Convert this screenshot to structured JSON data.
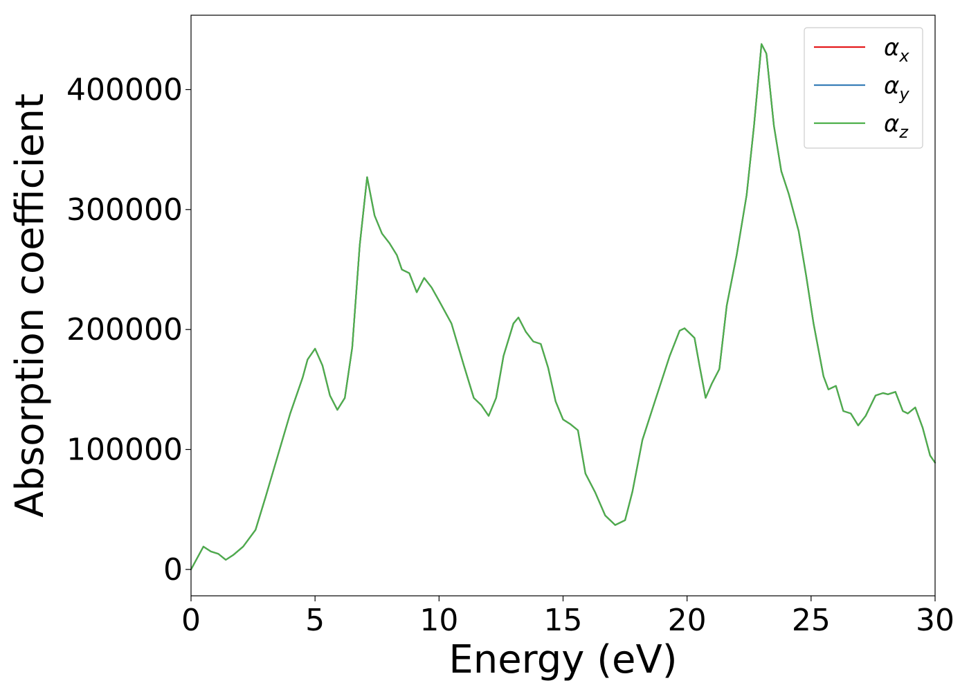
{
  "chart_data": {
    "type": "line",
    "xlabel": "Energy (eV)",
    "ylabel": "Absorption coefficient",
    "xlim": [
      0,
      30
    ],
    "ylim": [
      -22000,
      462000
    ],
    "x_ticks": [
      0,
      5,
      10,
      15,
      20,
      25,
      30
    ],
    "y_ticks": [
      0,
      100000,
      200000,
      300000,
      400000
    ],
    "grid": false,
    "legend_position": "top-right",
    "series": [
      {
        "name": "α",
        "subscript": "x",
        "color": "#e41a1c",
        "points": [
          [
            0,
            0
          ],
          [
            0.5,
            19000
          ],
          [
            0.8,
            15000
          ],
          [
            1.1,
            13000
          ],
          [
            1.4,
            8000
          ],
          [
            1.7,
            12000
          ],
          [
            2.1,
            19000
          ],
          [
            2.6,
            33000
          ],
          [
            3.0,
            60000
          ],
          [
            3.5,
            95000
          ],
          [
            4.0,
            130000
          ],
          [
            4.5,
            160000
          ],
          [
            4.7,
            175000
          ],
          [
            5.0,
            184000
          ],
          [
            5.3,
            170000
          ],
          [
            5.6,
            145000
          ],
          [
            5.9,
            133000
          ],
          [
            6.2,
            143000
          ],
          [
            6.5,
            185000
          ],
          [
            6.8,
            270000
          ],
          [
            7.1,
            327000
          ],
          [
            7.4,
            295000
          ],
          [
            7.7,
            280000
          ],
          [
            8.0,
            272000
          ],
          [
            8.3,
            262000
          ],
          [
            8.5,
            250000
          ],
          [
            8.8,
            247000
          ],
          [
            9.1,
            231000
          ],
          [
            9.4,
            243000
          ],
          [
            9.7,
            235000
          ],
          [
            10.0,
            224000
          ],
          [
            10.5,
            205000
          ],
          [
            11.0,
            170000
          ],
          [
            11.4,
            143000
          ],
          [
            11.7,
            137000
          ],
          [
            12.0,
            128000
          ],
          [
            12.3,
            143000
          ],
          [
            12.6,
            178000
          ],
          [
            13.0,
            205000
          ],
          [
            13.2,
            210000
          ],
          [
            13.5,
            198000
          ],
          [
            13.8,
            190000
          ],
          [
            14.1,
            188000
          ],
          [
            14.4,
            168000
          ],
          [
            14.7,
            140000
          ],
          [
            15.0,
            125000
          ],
          [
            15.3,
            121000
          ],
          [
            15.6,
            116000
          ],
          [
            15.9,
            80000
          ],
          [
            16.3,
            64000
          ],
          [
            16.7,
            45000
          ],
          [
            17.1,
            37000
          ],
          [
            17.5,
            41000
          ],
          [
            17.8,
            65000
          ],
          [
            18.2,
            108000
          ],
          [
            18.7,
            140000
          ],
          [
            19.3,
            178000
          ],
          [
            19.7,
            199000
          ],
          [
            19.9,
            201000
          ],
          [
            20.3,
            193000
          ],
          [
            20.5,
            170000
          ],
          [
            20.75,
            143000
          ],
          [
            21.0,
            155000
          ],
          [
            21.3,
            167000
          ],
          [
            21.6,
            220000
          ],
          [
            22.0,
            262000
          ],
          [
            22.4,
            312000
          ],
          [
            22.7,
            370000
          ],
          [
            23.0,
            438000
          ],
          [
            23.2,
            430000
          ],
          [
            23.5,
            370000
          ],
          [
            23.8,
            332000
          ],
          [
            24.1,
            313000
          ],
          [
            24.5,
            282000
          ],
          [
            24.8,
            245000
          ],
          [
            25.1,
            205000
          ],
          [
            25.5,
            161000
          ],
          [
            25.7,
            150000
          ],
          [
            26.0,
            153000
          ],
          [
            26.3,
            132000
          ],
          [
            26.6,
            130000
          ],
          [
            26.9,
            120000
          ],
          [
            27.2,
            128000
          ],
          [
            27.6,
            145000
          ],
          [
            27.9,
            147000
          ],
          [
            28.1,
            146000
          ],
          [
            28.4,
            148000
          ],
          [
            28.7,
            132000
          ],
          [
            28.9,
            130000
          ],
          [
            29.2,
            135000
          ],
          [
            29.5,
            118000
          ],
          [
            29.8,
            95000
          ],
          [
            30.0,
            89000
          ]
        ]
      },
      {
        "name": "α",
        "subscript": "y",
        "color": "#377eb8",
        "points": [
          [
            0,
            0
          ],
          [
            0.5,
            19000
          ],
          [
            0.8,
            15000
          ],
          [
            1.1,
            13000
          ],
          [
            1.4,
            8000
          ],
          [
            1.7,
            12000
          ],
          [
            2.1,
            19000
          ],
          [
            2.6,
            33000
          ],
          [
            3.0,
            60000
          ],
          [
            3.5,
            95000
          ],
          [
            4.0,
            130000
          ],
          [
            4.5,
            160000
          ],
          [
            4.7,
            175000
          ],
          [
            5.0,
            184000
          ],
          [
            5.3,
            170000
          ],
          [
            5.6,
            145000
          ],
          [
            5.9,
            133000
          ],
          [
            6.2,
            143000
          ],
          [
            6.5,
            185000
          ],
          [
            6.8,
            270000
          ],
          [
            7.1,
            327000
          ],
          [
            7.4,
            295000
          ],
          [
            7.7,
            280000
          ],
          [
            8.0,
            272000
          ],
          [
            8.3,
            262000
          ],
          [
            8.5,
            250000
          ],
          [
            8.8,
            247000
          ],
          [
            9.1,
            231000
          ],
          [
            9.4,
            243000
          ],
          [
            9.7,
            235000
          ],
          [
            10.0,
            224000
          ],
          [
            10.5,
            205000
          ],
          [
            11.0,
            170000
          ],
          [
            11.4,
            143000
          ],
          [
            11.7,
            137000
          ],
          [
            12.0,
            128000
          ],
          [
            12.3,
            143000
          ],
          [
            12.6,
            178000
          ],
          [
            13.0,
            205000
          ],
          [
            13.2,
            210000
          ],
          [
            13.5,
            198000
          ],
          [
            13.8,
            190000
          ],
          [
            14.1,
            188000
          ],
          [
            14.4,
            168000
          ],
          [
            14.7,
            140000
          ],
          [
            15.0,
            125000
          ],
          [
            15.3,
            121000
          ],
          [
            15.6,
            116000
          ],
          [
            15.9,
            80000
          ],
          [
            16.3,
            64000
          ],
          [
            16.7,
            45000
          ],
          [
            17.1,
            37000
          ],
          [
            17.5,
            41000
          ],
          [
            17.8,
            65000
          ],
          [
            18.2,
            108000
          ],
          [
            18.7,
            140000
          ],
          [
            19.3,
            178000
          ],
          [
            19.7,
            199000
          ],
          [
            19.9,
            201000
          ],
          [
            20.3,
            193000
          ],
          [
            20.5,
            170000
          ],
          [
            20.75,
            143000
          ],
          [
            21.0,
            155000
          ],
          [
            21.3,
            167000
          ],
          [
            21.6,
            220000
          ],
          [
            22.0,
            262000
          ],
          [
            22.4,
            312000
          ],
          [
            22.7,
            370000
          ],
          [
            23.0,
            438000
          ],
          [
            23.2,
            430000
          ],
          [
            23.5,
            370000
          ],
          [
            23.8,
            332000
          ],
          [
            24.1,
            313000
          ],
          [
            24.5,
            282000
          ],
          [
            24.8,
            245000
          ],
          [
            25.1,
            205000
          ],
          [
            25.5,
            161000
          ],
          [
            25.7,
            150000
          ],
          [
            26.0,
            153000
          ],
          [
            26.3,
            132000
          ],
          [
            26.6,
            130000
          ],
          [
            26.9,
            120000
          ],
          [
            27.2,
            128000
          ],
          [
            27.6,
            145000
          ],
          [
            27.9,
            147000
          ],
          [
            28.1,
            146000
          ],
          [
            28.4,
            148000
          ],
          [
            28.7,
            132000
          ],
          [
            28.9,
            130000
          ],
          [
            29.2,
            135000
          ],
          [
            29.5,
            118000
          ],
          [
            29.8,
            95000
          ],
          [
            30.0,
            89000
          ]
        ]
      },
      {
        "name": "α",
        "subscript": "z",
        "color": "#4daf4a",
        "points": [
          [
            0,
            0
          ],
          [
            0.5,
            19000
          ],
          [
            0.8,
            15000
          ],
          [
            1.1,
            13000
          ],
          [
            1.4,
            8000
          ],
          [
            1.7,
            12000
          ],
          [
            2.1,
            19000
          ],
          [
            2.6,
            33000
          ],
          [
            3.0,
            60000
          ],
          [
            3.5,
            95000
          ],
          [
            4.0,
            130000
          ],
          [
            4.5,
            160000
          ],
          [
            4.7,
            175000
          ],
          [
            5.0,
            184000
          ],
          [
            5.3,
            170000
          ],
          [
            5.6,
            145000
          ],
          [
            5.9,
            133000
          ],
          [
            6.2,
            143000
          ],
          [
            6.5,
            185000
          ],
          [
            6.8,
            270000
          ],
          [
            7.1,
            327000
          ],
          [
            7.4,
            295000
          ],
          [
            7.7,
            280000
          ],
          [
            8.0,
            272000
          ],
          [
            8.3,
            262000
          ],
          [
            8.5,
            250000
          ],
          [
            8.8,
            247000
          ],
          [
            9.1,
            231000
          ],
          [
            9.4,
            243000
          ],
          [
            9.7,
            235000
          ],
          [
            10.0,
            224000
          ],
          [
            10.5,
            205000
          ],
          [
            11.0,
            170000
          ],
          [
            11.4,
            143000
          ],
          [
            11.7,
            137000
          ],
          [
            12.0,
            128000
          ],
          [
            12.3,
            143000
          ],
          [
            12.6,
            178000
          ],
          [
            13.0,
            205000
          ],
          [
            13.2,
            210000
          ],
          [
            13.5,
            198000
          ],
          [
            13.8,
            190000
          ],
          [
            14.1,
            188000
          ],
          [
            14.4,
            168000
          ],
          [
            14.7,
            140000
          ],
          [
            15.0,
            125000
          ],
          [
            15.3,
            121000
          ],
          [
            15.6,
            116000
          ],
          [
            15.9,
            80000
          ],
          [
            16.3,
            64000
          ],
          [
            16.7,
            45000
          ],
          [
            17.1,
            37000
          ],
          [
            17.5,
            41000
          ],
          [
            17.8,
            65000
          ],
          [
            18.2,
            108000
          ],
          [
            18.7,
            140000
          ],
          [
            19.3,
            178000
          ],
          [
            19.7,
            199000
          ],
          [
            19.9,
            201000
          ],
          [
            20.3,
            193000
          ],
          [
            20.5,
            170000
          ],
          [
            20.75,
            143000
          ],
          [
            21.0,
            155000
          ],
          [
            21.3,
            167000
          ],
          [
            21.6,
            220000
          ],
          [
            22.0,
            262000
          ],
          [
            22.4,
            312000
          ],
          [
            22.7,
            370000
          ],
          [
            23.0,
            438000
          ],
          [
            23.2,
            430000
          ],
          [
            23.5,
            370000
          ],
          [
            23.8,
            332000
          ],
          [
            24.1,
            313000
          ],
          [
            24.5,
            282000
          ],
          [
            24.8,
            245000
          ],
          [
            25.1,
            205000
          ],
          [
            25.5,
            161000
          ],
          [
            25.7,
            150000
          ],
          [
            26.0,
            153000
          ],
          [
            26.3,
            132000
          ],
          [
            26.6,
            130000
          ],
          [
            26.9,
            120000
          ],
          [
            27.2,
            128000
          ],
          [
            27.6,
            145000
          ],
          [
            27.9,
            147000
          ],
          [
            28.1,
            146000
          ],
          [
            28.4,
            148000
          ],
          [
            28.7,
            132000
          ],
          [
            28.9,
            130000
          ],
          [
            29.2,
            135000
          ],
          [
            29.5,
            118000
          ],
          [
            29.8,
            95000
          ],
          [
            30.0,
            89000
          ]
        ]
      }
    ]
  }
}
